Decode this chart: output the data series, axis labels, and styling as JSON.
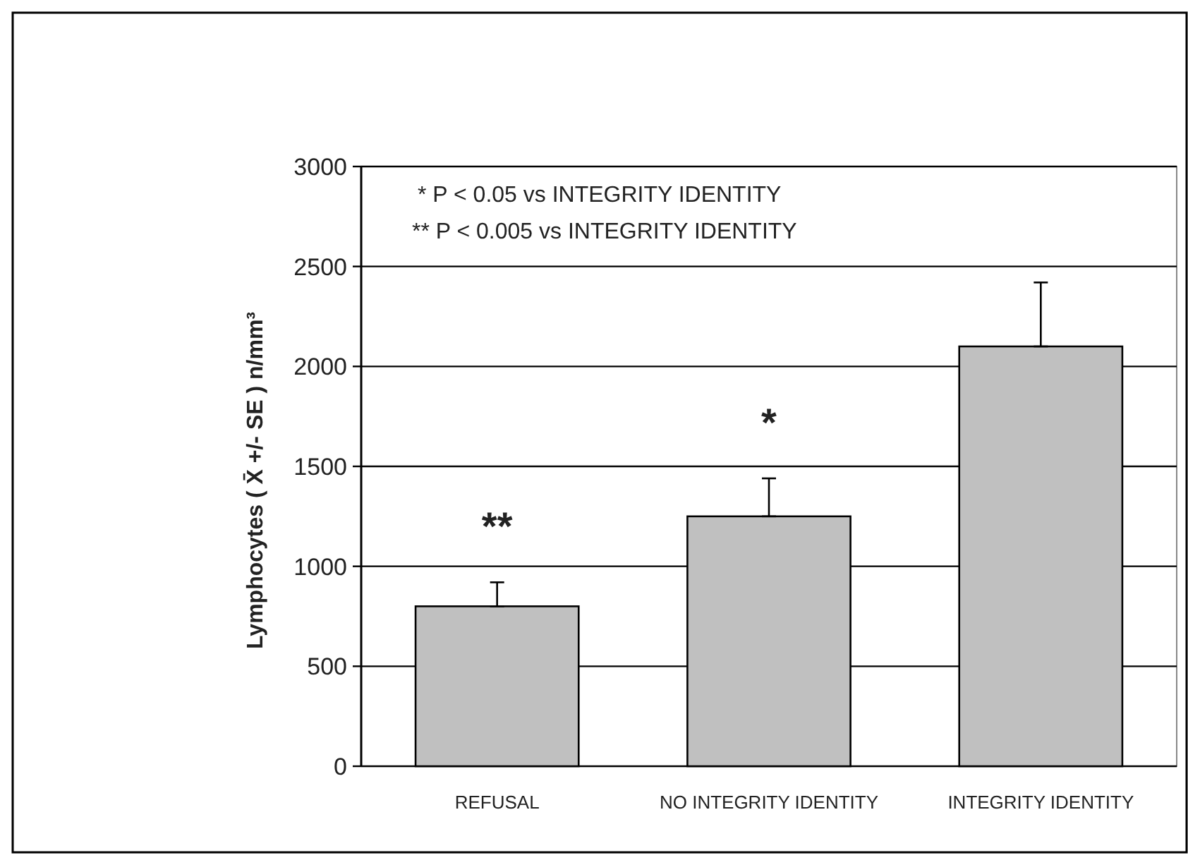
{
  "chart_data": {
    "type": "bar",
    "ylabel": "Lymphocytes ( X̄ +/- SE ) n/mm³",
    "categories": [
      "REFUSAL",
      "NO INTEGRITY IDENTITY",
      "INTEGRITY IDENTITY"
    ],
    "values": [
      800,
      1250,
      2100
    ],
    "errors": [
      [
        800,
        920
      ],
      [
        1250,
        1440
      ],
      [
        2100,
        2420
      ]
    ],
    "color": "#c0c0c0",
    "ylim": [
      0,
      3000
    ],
    "yticks": [
      0,
      500,
      1000,
      1500,
      2000,
      2500,
      3000
    ],
    "grid": "y",
    "annotations": [
      "* P < 0.05 vs INTEGRITY IDENTITY",
      "** P < 0.005 vs INTEGRITY IDENTITY",
      "**",
      "*"
    ]
  }
}
